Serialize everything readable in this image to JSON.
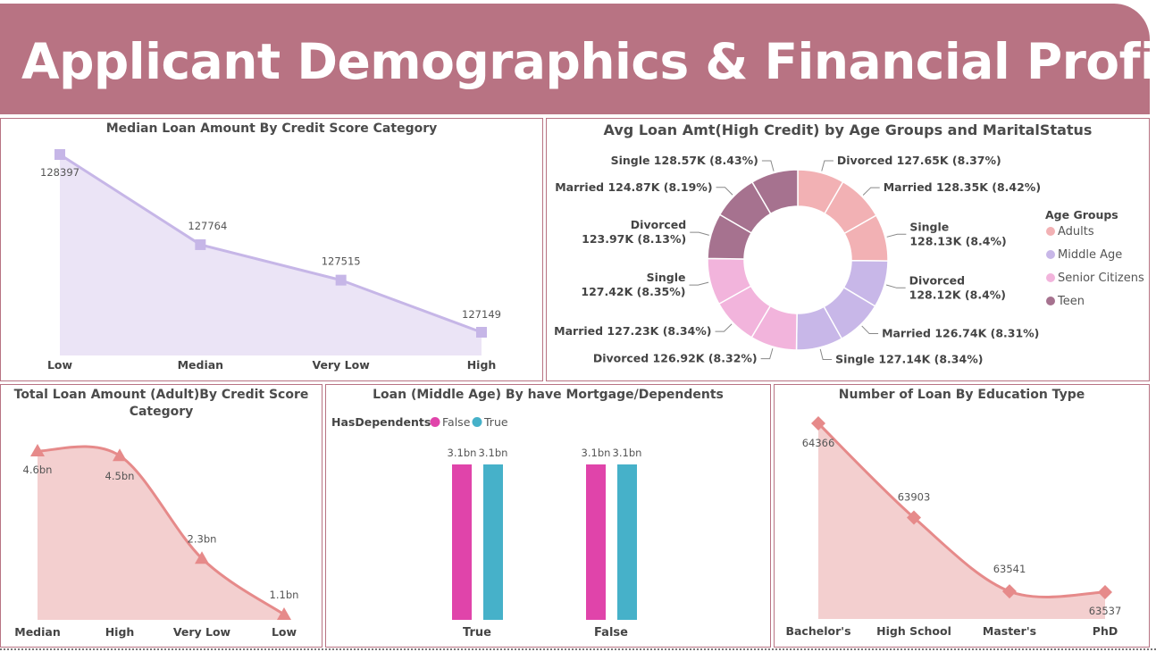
{
  "header": {
    "title": "Applicant Demographics & Financial Profile"
  },
  "colors": {
    "banner": "#b87383",
    "lavender_line": "#c6b6e7",
    "lavender_fill": "#ebe4f6",
    "salmon_line": "#e68a8a",
    "salmon_fill": "#f3cfcf",
    "pink_bar": "#e044aa",
    "teal_bar": "#46b1c9",
    "adults": "#f2b1b4",
    "middle_age": "#c8b7e8",
    "senior_citizens": "#f2b4dc",
    "teen": "#a6728f"
  },
  "chart_data": [
    {
      "id": "median_loan",
      "type": "area",
      "title": "Median Loan Amount By Credit Score Category",
      "categories": [
        "Low",
        "Median",
        "Very Low",
        "High"
      ],
      "values": [
        128397,
        127764,
        127515,
        127149
      ],
      "data_labels": [
        "128397",
        "127764",
        "127515",
        "127149"
      ],
      "marker": "square",
      "grid": false
    },
    {
      "id": "avg_loan_age_marital",
      "type": "pie",
      "donut": true,
      "title": "Avg Loan Amt(High Credit) by Age Groups and MaritalStatus",
      "legend_title": "Age Groups",
      "legend": [
        "Adults",
        "Middle Age",
        "Senior Citizens",
        "Teen"
      ],
      "legend_position": "right",
      "slices": [
        {
          "group": "Adults",
          "label": "Divorced",
          "value": 127.65,
          "display": "127.65K",
          "pct": "8.37%"
        },
        {
          "group": "Adults",
          "label": "Married",
          "value": 128.35,
          "display": "128.35K",
          "pct": "8.42%"
        },
        {
          "group": "Adults",
          "label": "Single",
          "value": 128.13,
          "display": "128.13K",
          "pct": "8.4%"
        },
        {
          "group": "Middle Age",
          "label": "Divorced",
          "value": 128.12,
          "display": "128.12K",
          "pct": "8.4%"
        },
        {
          "group": "Middle Age",
          "label": "Married",
          "value": 126.74,
          "display": "126.74K",
          "pct": "8.31%"
        },
        {
          "group": "Middle Age",
          "label": "Single",
          "value": 127.14,
          "display": "127.14K",
          "pct": "8.34%"
        },
        {
          "group": "Senior Citizens",
          "label": "Divorced",
          "value": 126.92,
          "display": "126.92K",
          "pct": "8.32%"
        },
        {
          "group": "Senior Citizens",
          "label": "Married",
          "value": 127.23,
          "display": "127.23K",
          "pct": "8.34%"
        },
        {
          "group": "Senior Citizens",
          "label": "Single",
          "value": 127.42,
          "display": "127.42K",
          "pct": "8.35%"
        },
        {
          "group": "Teen",
          "label": "Divorced",
          "value": 123.97,
          "display": "123.97K",
          "pct": "8.13%"
        },
        {
          "group": "Teen",
          "label": "Married",
          "value": 124.87,
          "display": "124.87K",
          "pct": "8.19%"
        },
        {
          "group": "Teen",
          "label": "Single",
          "value": 128.57,
          "display": "128.57K",
          "pct": "8.43%"
        }
      ]
    },
    {
      "id": "total_loan_adult",
      "type": "area",
      "title_lines": [
        "Total Loan Amount (Adult)By Credit Score",
        "Category"
      ],
      "categories": [
        "Median",
        "High",
        "Very Low",
        "Low"
      ],
      "values": [
        4.6,
        4.5,
        2.3,
        1.1
      ],
      "unit": "bn",
      "data_labels": [
        "4.6bn",
        "4.5bn",
        "2.3bn",
        "1.1bn"
      ],
      "marker": "triangle",
      "grid": false
    },
    {
      "id": "loan_middle_age_mortgage",
      "type": "bar",
      "title": "Loan (Middle Age) By have Mortgage/Dependents",
      "legend_title": "HasDependents",
      "legend_position": "top-left",
      "categories": [
        "True",
        "False"
      ],
      "series": [
        {
          "name": "False",
          "values": [
            3.1,
            3.1
          ],
          "labels": [
            "3.1bn",
            "3.1bn"
          ]
        },
        {
          "name": "True",
          "values": [
            3.1,
            3.1
          ],
          "labels": [
            "3.1bn",
            "3.1bn"
          ]
        }
      ],
      "unit": "bn",
      "grid": false
    },
    {
      "id": "loans_by_education",
      "type": "area",
      "title": "Number of Loan By Education Type",
      "categories": [
        "Bachelor's",
        "High School",
        "Master's",
        "PhD"
      ],
      "values": [
        64366,
        63903,
        63541,
        63537
      ],
      "data_labels": [
        "64366",
        "63903",
        "63541",
        "63537"
      ],
      "marker": "diamond",
      "grid": false
    }
  ]
}
